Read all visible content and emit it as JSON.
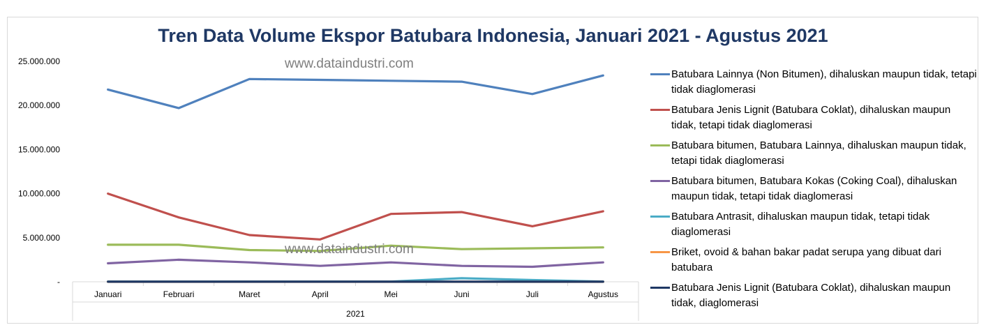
{
  "chart_data": {
    "type": "line",
    "title": "Tren Data Volume Ekspor Batubara Indonesia, Januari 2021 - Agustus 2021",
    "watermark": "www.dataindustri.com",
    "categories": [
      "Januari",
      "Februari",
      "Maret",
      "April",
      "Mei",
      "Juni",
      "Juli",
      "Agustus"
    ],
    "x_group_label": "2021",
    "ylim": [
      0,
      25000000
    ],
    "yticks": [
      0,
      5000000,
      10000000,
      15000000,
      20000000,
      25000000
    ],
    "ytick_labels": [
      "-",
      "5.000.000",
      "10.000.000",
      "15.000.000",
      "20.000.000",
      "25.000.000"
    ],
    "legend_position": "right",
    "grid": false,
    "series": [
      {
        "name": "Batubara Lainnya (Non Bitumen), dihaluskan maupun tidak, tetapi tidak diaglomerasi",
        "color": "#4f81bd",
        "values": [
          21800000,
          19700000,
          23000000,
          22900000,
          22800000,
          22700000,
          21300000,
          23400000
        ]
      },
      {
        "name": "Batubara Jenis Lignit (Batubara Coklat), dihaluskan maupun tidak, tetapi tidak diaglomerasi",
        "color": "#c0504d",
        "values": [
          10000000,
          7300000,
          5300000,
          4800000,
          7700000,
          7900000,
          6300000,
          8000000
        ]
      },
      {
        "name": "Batubara bitumen, Batubara Lainnya, dihaluskan maupun tidak, tetapi tidak diaglomerasi",
        "color": "#9bbb59",
        "values": [
          4200000,
          4200000,
          3600000,
          3500000,
          4100000,
          3700000,
          3800000,
          3900000
        ]
      },
      {
        "name": "Batubara bitumen, Batubara Kokas (Coking Coal), dihaluskan maupun tidak, tetapi tidak diaglomerasi",
        "color": "#8064a2",
        "values": [
          2100000,
          2500000,
          2200000,
          1800000,
          2200000,
          1800000,
          1700000,
          2200000
        ]
      },
      {
        "name": "Batubara Antrasit, dihaluskan maupun tidak, tetapi tidak diaglomerasi",
        "color": "#4bacc6",
        "values": [
          20000,
          20000,
          20000,
          20000,
          20000,
          400000,
          200000,
          20000
        ]
      },
      {
        "name": "Briket, ovoid & bahan bakar padat serupa yang dibuat dari batubara",
        "color": "#f79646",
        "values": [
          0,
          0,
          0,
          0,
          0,
          0,
          0,
          0
        ]
      },
      {
        "name": "Batubara Jenis Lignit (Batubara Coklat), dihaluskan maupun tidak, diaglomerasi",
        "color": "#1f3864",
        "values": [
          5000,
          5000,
          5000,
          5000,
          5000,
          5000,
          5000,
          5000
        ]
      }
    ]
  }
}
